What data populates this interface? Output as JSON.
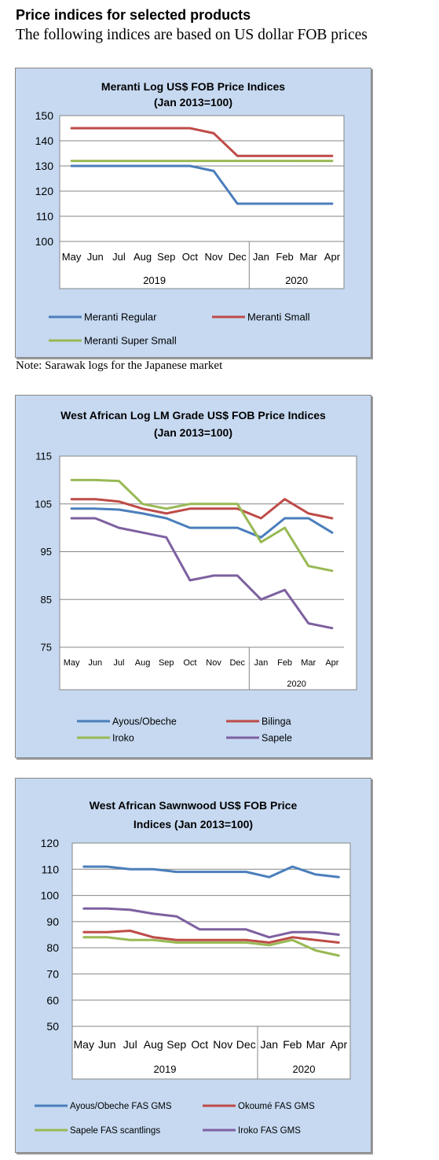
{
  "header": {
    "title": "Price indices for selected products",
    "subtitle": "The following indices are based on US dollar FOB prices"
  },
  "note": "Note: Sarawak logs for the Japanese market",
  "chart_data": [
    {
      "type": "line",
      "title": [
        "Meranti Log US$ FOB Price Indices",
        "(Jan 2013=100)"
      ],
      "categories": [
        "May",
        "Jun",
        "Jul",
        "Aug",
        "Sep",
        "Oct",
        "Nov",
        "Dec",
        "Jan",
        "Feb",
        "Mar",
        "Apr"
      ],
      "year_groups": [
        {
          "label": "2019",
          "start": 0,
          "end": 7
        },
        {
          "label": "2020",
          "start": 8,
          "end": 11
        }
      ],
      "ylim": [
        100,
        150
      ],
      "yticks": [
        100,
        110,
        120,
        130,
        140,
        150
      ],
      "legend_position": "bottom",
      "series": [
        {
          "name": "Meranti Regular",
          "color": "#4a7ebb",
          "values": [
            130,
            130,
            130,
            130,
            130,
            130,
            128,
            115,
            115,
            115,
            115,
            115
          ]
        },
        {
          "name": "Meranti Small",
          "color": "#be4b48",
          "values": [
            145,
            145,
            145,
            145,
            145,
            145,
            143,
            134,
            134,
            134,
            134,
            134
          ]
        },
        {
          "name": "Meranti Super Small",
          "color": "#98b954",
          "values": [
            132,
            132,
            132,
            132,
            132,
            132,
            132,
            132,
            132,
            132,
            132,
            132
          ]
        }
      ]
    },
    {
      "type": "line",
      "title": [
        "West African Log LM Grade US$ FOB Price Indices",
        "(Jan 2013=100)"
      ],
      "categories": [
        "May",
        "Jun",
        "Jul",
        "Aug",
        "Sep",
        "Oct",
        "Nov",
        "Dec",
        "Jan",
        "Feb",
        "Mar",
        "Apr"
      ],
      "year_groups": [
        {
          "label": "2020",
          "start": 8,
          "end": 11
        }
      ],
      "ylim": [
        75,
        115
      ],
      "yticks": [
        75,
        85,
        95,
        105,
        115
      ],
      "legend_position": "bottom",
      "series": [
        {
          "name": "Ayous/Obeche",
          "color": "#4a7ebb",
          "values": [
            104,
            104,
            103.8,
            103,
            102,
            100,
            100,
            100,
            98,
            102,
            102,
            99
          ]
        },
        {
          "name": "Bilinga",
          "color": "#be4b48",
          "values": [
            106,
            106,
            105.5,
            104,
            103,
            104,
            104,
            104,
            102,
            106,
            103,
            102
          ]
        },
        {
          "name": "Iroko",
          "color": "#98b954",
          "values": [
            110,
            110,
            109.8,
            105,
            104,
            105,
            105,
            105,
            97,
            100,
            92,
            91
          ]
        },
        {
          "name": "Sapele",
          "color": "#7d60a0",
          "values": [
            102,
            102,
            100,
            99,
            98,
            89,
            90,
            90,
            85,
            87,
            80,
            79
          ]
        }
      ]
    },
    {
      "type": "line",
      "title": [
        "West African Sawnwood US$ FOB Price",
        "Indices (Jan 2013=100)"
      ],
      "categories": [
        "May",
        "Jun",
        "Jul",
        "Aug",
        "Sep",
        "Oct",
        "Nov",
        "Dec",
        "Jan",
        "Feb",
        "Mar",
        "Apr"
      ],
      "year_groups": [
        {
          "label": "2019",
          "start": 0,
          "end": 7
        },
        {
          "label": "2020",
          "start": 8,
          "end": 11
        }
      ],
      "ylim": [
        50,
        120
      ],
      "yticks": [
        50,
        60,
        70,
        80,
        90,
        100,
        110,
        120
      ],
      "legend_position": "bottom",
      "series": [
        {
          "name": "Ayous/Obeche  FAS GMS",
          "color": "#4a7ebb",
          "values": [
            111,
            111,
            110,
            110,
            109,
            109,
            109,
            109,
            107,
            111,
            108,
            107
          ]
        },
        {
          "name": "Okoumé  FAS GMS",
          "color": "#be4b48",
          "values": [
            86,
            86,
            86.5,
            84,
            83,
            83,
            83,
            83,
            82,
            84,
            83,
            82
          ]
        },
        {
          "name": "Sapele FAS scantlings",
          "color": "#98b954",
          "values": [
            84,
            84,
            83,
            83,
            82,
            82,
            82,
            82,
            81,
            83,
            79,
            77
          ]
        },
        {
          "name": "Iroko FAS GMS",
          "color": "#7d60a0",
          "values": [
            95,
            95,
            94.5,
            93,
            92,
            87,
            87,
            87,
            84,
            86,
            86,
            85
          ]
        }
      ]
    }
  ]
}
